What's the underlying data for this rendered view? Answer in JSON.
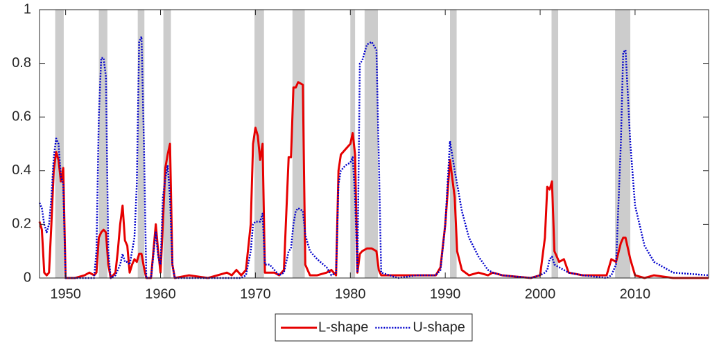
{
  "chart_data": {
    "type": "line",
    "x": [
      1947.25,
      1947.5,
      1947.75,
      1948.0,
      1948.25,
      1948.5,
      1948.75,
      1949.0,
      1949.25,
      1949.5,
      1949.75,
      1950.0,
      1951,
      1952,
      1952.5,
      1953,
      1953.25,
      1953.5,
      1953.75,
      1954.0,
      1954.25,
      1954.5,
      1954.75,
      1955.25,
      1955.5,
      1955.75,
      1956.0,
      1956.25,
      1956.5,
      1956.75,
      1957.0,
      1957.25,
      1957.5,
      1957.75,
      1958.0,
      1958.25,
      1958.5,
      1959.0,
      1959.5,
      1959.75,
      1960.0,
      1960.25,
      1960.5,
      1960.75,
      1961.0,
      1961.25,
      1961.5,
      1963,
      1965,
      1967,
      1967.5,
      1968,
      1968.5,
      1969.0,
      1969.5,
      1969.75,
      1970.0,
      1970.25,
      1970.5,
      1970.75,
      1971.0,
      1971.5,
      1972.0,
      1972.5,
      1973.0,
      1973.5,
      1973.75,
      1974.0,
      1974.25,
      1974.5,
      1975.0,
      1975.25,
      1975.75,
      1976.5,
      1977.5,
      1978.0,
      1978.5,
      1978.75,
      1979.0,
      1979.5,
      1980.0,
      1980.25,
      1980.5,
      1980.75,
      1981.0,
      1981.25,
      1981.75,
      1982.25,
      1982.75,
      1983.0,
      1983.25,
      1985,
      1987,
      1989.0,
      1989.5,
      1990.0,
      1990.5,
      1991.0,
      1991.25,
      1991.75,
      1992.5,
      1993.5,
      1994.5,
      1995.0,
      1996,
      1999,
      2000.0,
      2000.5,
      2000.75,
      2001.0,
      2001.25,
      2001.5,
      2002.0,
      2002.5,
      2003.0,
      2004.5,
      2007.0,
      2007.5,
      2008.0,
      2008.5,
      2008.75,
      2009.0,
      2009.5,
      2010.0,
      2011.0,
      2012.0,
      2014.0,
      2017.75
    ],
    "series": [
      {
        "name": "L-shape",
        "color": "#e60000",
        "dash": "solid",
        "values": [
          0.21,
          0.18,
          0.02,
          0.01,
          0.02,
          0.2,
          0.4,
          0.47,
          0.44,
          0.36,
          0.41,
          0.0,
          0.0,
          0.01,
          0.02,
          0.01,
          0.02,
          0.15,
          0.17,
          0.18,
          0.17,
          0.05,
          0.0,
          0.02,
          0.1,
          0.2,
          0.27,
          0.14,
          0.12,
          0.02,
          0.05,
          0.07,
          0.06,
          0.09,
          0.09,
          0.04,
          0.0,
          0.0,
          0.2,
          0.1,
          0.02,
          0.2,
          0.41,
          0.46,
          0.5,
          0.05,
          0.0,
          0.01,
          0.0,
          0.02,
          0.01,
          0.03,
          0.01,
          0.03,
          0.2,
          0.5,
          0.56,
          0.53,
          0.44,
          0.5,
          0.02,
          0.02,
          0.02,
          0.01,
          0.03,
          0.45,
          0.45,
          0.71,
          0.71,
          0.73,
          0.72,
          0.05,
          0.01,
          0.01,
          0.02,
          0.03,
          0.01,
          0.4,
          0.46,
          0.48,
          0.5,
          0.54,
          0.46,
          0.02,
          0.09,
          0.1,
          0.11,
          0.11,
          0.1,
          0.03,
          0.01,
          0.01,
          0.01,
          0.01,
          0.04,
          0.2,
          0.44,
          0.3,
          0.1,
          0.03,
          0.01,
          0.02,
          0.01,
          0.02,
          0.01,
          0.0,
          0.01,
          0.15,
          0.34,
          0.33,
          0.36,
          0.1,
          0.06,
          0.07,
          0.02,
          0.01,
          0.01,
          0.07,
          0.06,
          0.13,
          0.15,
          0.15,
          0.07,
          0.01,
          0.0,
          0.01,
          0.0,
          0.0
        ]
      },
      {
        "name": "U-shape",
        "color": "#0000cc",
        "dash": "dotted",
        "values": [
          0.28,
          0.26,
          0.2,
          0.17,
          0.2,
          0.3,
          0.45,
          0.52,
          0.5,
          0.38,
          0.35,
          0.0,
          0.0,
          0.0,
          0.0,
          0.0,
          0.1,
          0.6,
          0.82,
          0.82,
          0.75,
          0.1,
          0.0,
          0.01,
          0.03,
          0.05,
          0.09,
          0.06,
          0.06,
          0.05,
          0.1,
          0.15,
          0.35,
          0.88,
          0.9,
          0.5,
          0.0,
          0.0,
          0.17,
          0.08,
          0.05,
          0.3,
          0.37,
          0.42,
          0.3,
          0.05,
          0.0,
          0.0,
          0.0,
          0.0,
          0.0,
          0.0,
          0.0,
          0.01,
          0.1,
          0.2,
          0.21,
          0.21,
          0.21,
          0.24,
          0.05,
          0.05,
          0.03,
          0.01,
          0.02,
          0.1,
          0.11,
          0.2,
          0.25,
          0.26,
          0.25,
          0.16,
          0.1,
          0.07,
          0.04,
          0.01,
          0.02,
          0.35,
          0.4,
          0.42,
          0.43,
          0.45,
          0.3,
          0.02,
          0.8,
          0.81,
          0.87,
          0.88,
          0.85,
          0.45,
          0.02,
          0.0,
          0.01,
          0.01,
          0.03,
          0.2,
          0.51,
          0.4,
          0.35,
          0.25,
          0.15,
          0.08,
          0.03,
          0.02,
          0.01,
          0.0,
          0.01,
          0.02,
          0.03,
          0.07,
          0.08,
          0.05,
          0.04,
          0.03,
          0.02,
          0.01,
          0.0,
          0.01,
          0.05,
          0.5,
          0.84,
          0.85,
          0.5,
          0.27,
          0.12,
          0.06,
          0.02,
          0.01
        ]
      }
    ],
    "shaded_periods": [
      [
        1948.9,
        1949.8
      ],
      [
        1953.5,
        1954.4
      ],
      [
        1957.6,
        1958.3
      ],
      [
        1960.3,
        1961.1
      ],
      [
        1969.9,
        1970.9
      ],
      [
        1973.9,
        1975.2
      ],
      [
        1980.0,
        1980.5
      ],
      [
        1981.5,
        1982.9
      ],
      [
        1990.5,
        1991.2
      ],
      [
        2001.2,
        2001.9
      ],
      [
        2007.9,
        2009.5
      ]
    ],
    "shade_color": "#cccccc",
    "xlim": [
      1947.25,
      2017.75
    ],
    "xticks": [
      1950,
      1960,
      1970,
      1980,
      1990,
      2000,
      2010
    ],
    "ylim": [
      0,
      1
    ],
    "yticks": [
      0,
      0.2,
      0.4,
      0.6,
      0.8,
      1
    ],
    "legend": "bottom"
  }
}
